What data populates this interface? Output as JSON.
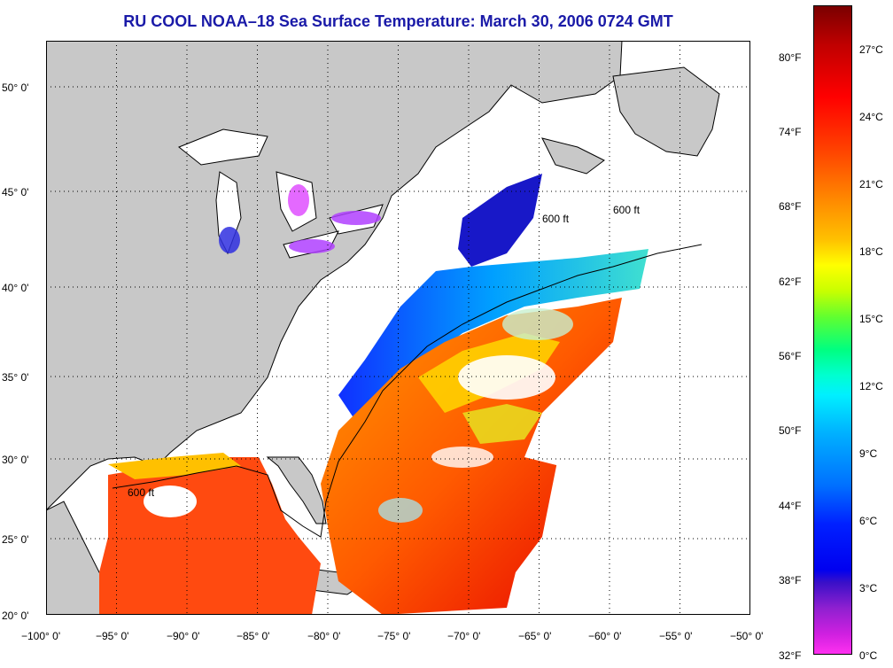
{
  "title": "RU COOL  NOAA–18  Sea Surface Temperature:  March 30, 2006 0724 GMT",
  "map": {
    "lat_labels": [
      "50° 0'",
      "45° 0'",
      "40° 0'",
      "35° 0'",
      "30° 0'",
      "25° 0'",
      "20° 0'"
    ],
    "lon_labels": [
      "−100° 0'",
      "−95° 0'",
      "−90° 0'",
      "−85° 0'",
      "−80° 0'",
      "−75° 0'",
      "−70° 0'",
      "−65° 0'",
      "−60° 0'",
      "−55° 0'",
      "−50° 0'"
    ],
    "contour_label": "600 ft",
    "land_color": "#c8c8c8",
    "cloud_color": "#ffffff"
  },
  "colorbar": {
    "fahrenheit_labels": [
      "80°F",
      "74°F",
      "68°F",
      "62°F",
      "56°F",
      "50°F",
      "44°F",
      "38°F",
      "32°F"
    ],
    "celsius_labels": [
      "27°C",
      "24°C",
      "21°C",
      "18°C",
      "15°C",
      "12°C",
      "9°C",
      "6°C",
      "3°C",
      "0°C"
    ]
  }
}
